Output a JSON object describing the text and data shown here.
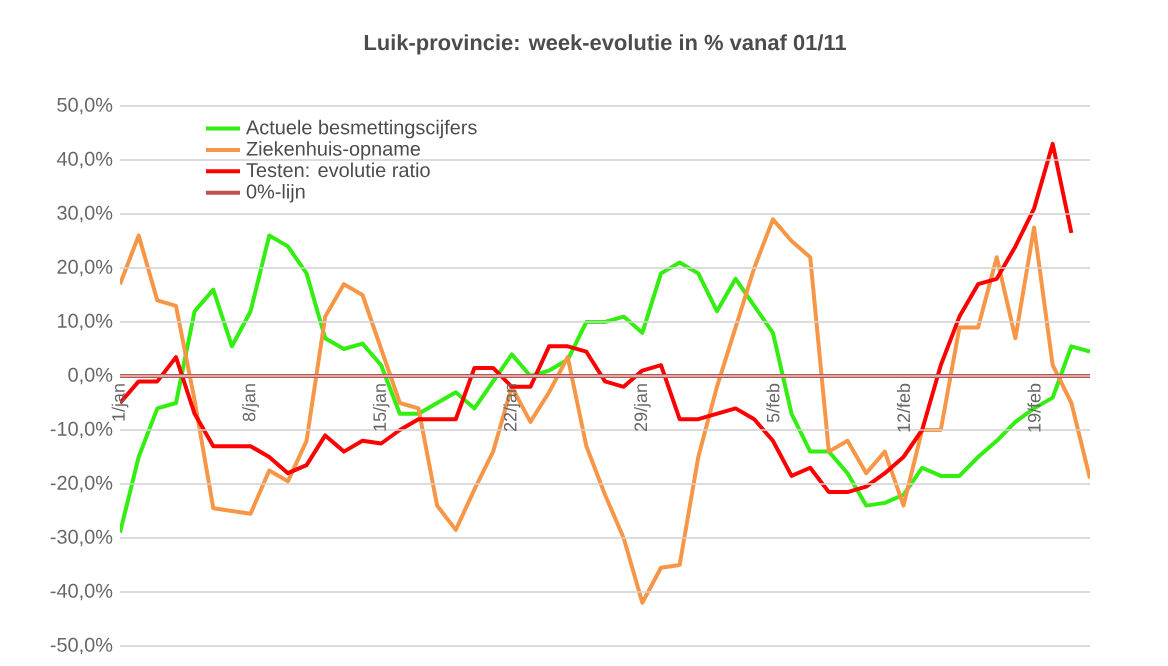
{
  "chart_data": {
    "type": "line",
    "title": "**Luik-provincie: week-evolutie in %  vanaf 01/11**",
    "categories": [
      "1/jan",
      null,
      null,
      null,
      null,
      null,
      null,
      "8/jan",
      null,
      null,
      null,
      null,
      null,
      null,
      "15/jan",
      null,
      null,
      null,
      null,
      null,
      null,
      "22/jan",
      null,
      null,
      null,
      null,
      null,
      null,
      "29/jan",
      null,
      null,
      null,
      null,
      null,
      null,
      "5/feb",
      null,
      null,
      null,
      null,
      null,
      null,
      "12/feb",
      null,
      null,
      null,
      null,
      null,
      null,
      "19/feb",
      null,
      null,
      null
    ],
    "series": [
      {
        "name": "Actuele besmettingscijfers",
        "color": "#33ee11",
        "values": [
          -29,
          -15,
          -6,
          -5,
          12,
          16,
          5.5,
          12,
          26,
          24,
          19,
          7,
          5,
          6,
          2,
          -7,
          -7,
          -5,
          -3,
          -6,
          -1,
          4,
          0,
          1,
          3,
          10,
          10,
          11,
          8,
          19,
          21,
          19,
          12,
          18,
          13,
          8,
          -7,
          -14,
          -14,
          -18,
          -24,
          -23.5,
          -22,
          -17,
          -18.5,
          -18.5,
          -15,
          -12,
          -8.5,
          -6,
          -4,
          5.5,
          4.5
        ]
      },
      {
        "name": "Ziekenhuis-opname",
        "color": "#f79646",
        "values": [
          17,
          26,
          14,
          13,
          -4.5,
          -24.5,
          -25,
          -25.5,
          -17.5,
          -19.5,
          -12,
          11,
          17,
          15,
          5,
          -5,
          -6,
          -24,
          -28.5,
          -21,
          -14,
          -2,
          -8.5,
          -3,
          3.5,
          -13,
          -22,
          -30,
          -42,
          -35.5,
          -35,
          -15,
          -2,
          9,
          20,
          29,
          25,
          22,
          -14,
          -12,
          -18,
          -14,
          -24,
          -10,
          -10,
          9,
          9,
          22,
          7,
          27.5,
          2,
          -5,
          -19
        ]
      },
      {
        "name": "Testen: evolutie ratio",
        "color": "#ff0000",
        "values": [
          -5,
          -1,
          -1,
          3.5,
          -7,
          -13,
          -13,
          -13,
          -15,
          -18,
          -16.5,
          -11,
          -14,
          -12,
          -12.5,
          -10,
          -8,
          -8,
          -8,
          1.5,
          1.5,
          -2,
          -2,
          5.5,
          5.5,
          4.5,
          -1,
          -2,
          1,
          2,
          -8,
          -8,
          -7,
          -6,
          -8,
          -12,
          -18.5,
          -17,
          -21.5,
          -21.5,
          -20.5,
          -18,
          -15,
          -10,
          2,
          11,
          17,
          18,
          24,
          31,
          43,
          26.5,
          null
        ]
      },
      {
        "name": "0%-lijn",
        "color": "#c0504d",
        "values": [
          0,
          0,
          0,
          0,
          0,
          0,
          0,
          0,
          0,
          0,
          0,
          0,
          0,
          0,
          0,
          0,
          0,
          0,
          0,
          0,
          0,
          0,
          0,
          0,
          0,
          0,
          0,
          0,
          0,
          0,
          0,
          0,
          0,
          0,
          0,
          0,
          0,
          0,
          0,
          0,
          0,
          0,
          0,
          0,
          0,
          0,
          0,
          0,
          0,
          0,
          0,
          0,
          0
        ]
      }
    ],
    "ylim": [
      -50,
      50
    ],
    "yticks": [
      {
        "value": -50,
        "label": "-50,0%"
      },
      {
        "value": -40,
        "label": "-40,0%"
      },
      {
        "value": -30,
        "label": "-30,0%"
      },
      {
        "value": -20,
        "label": "-20,0%"
      },
      {
        "value": -10,
        "label": "-10,0%"
      },
      {
        "value": 0,
        "label": "0,0%"
      },
      {
        "value": 10,
        "label": "10,0%"
      },
      {
        "value": 20,
        "label": "20,0%"
      },
      {
        "value": 30,
        "label": "30,0%"
      },
      {
        "value": 40,
        "label": "40,0%"
      },
      {
        "value": 50,
        "label": "50,0%"
      }
    ],
    "grid": "y",
    "legend": "top left",
    "marker": "none",
    "line_style": "solid"
  }
}
